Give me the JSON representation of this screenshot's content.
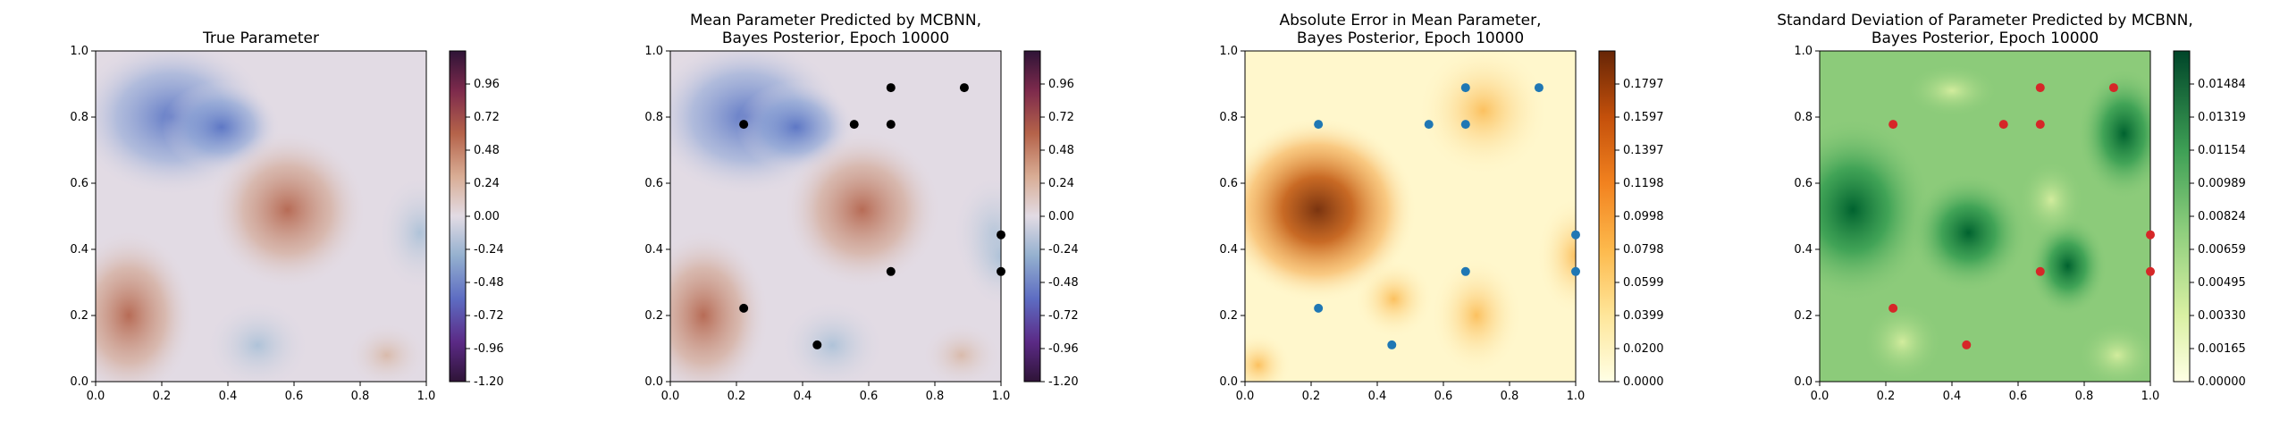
{
  "chart_data": [
    {
      "type": "heatmap",
      "title": [
        "True Parameter"
      ],
      "colormap": "twilight_shifted",
      "xlim": [
        0.0,
        1.0
      ],
      "ylim": [
        0.0,
        1.0
      ],
      "x_ticks": [
        "0.0",
        "0.2",
        "0.4",
        "0.6",
        "0.8",
        "1.0"
      ],
      "y_ticks": [
        "0.0",
        "0.2",
        "0.4",
        "0.6",
        "0.8",
        "1.0"
      ],
      "colorbar_range": [
        -1.2,
        1.2
      ],
      "colorbar_ticks": [
        "-1.20",
        "-0.96",
        "-0.72",
        "-0.48",
        "-0.24",
        "0.00",
        "0.24",
        "0.48",
        "0.72",
        "0.96"
      ],
      "points": [],
      "point_color": ""
    },
    {
      "type": "heatmap",
      "title": [
        "Mean Parameter Predicted by MCBNN,",
        "Bayes Posterior, Epoch 10000"
      ],
      "colormap": "twilight_shifted",
      "xlim": [
        0.0,
        1.0
      ],
      "ylim": [
        0.0,
        1.0
      ],
      "x_ticks": [
        "0.0",
        "0.2",
        "0.4",
        "0.6",
        "0.8",
        "1.0"
      ],
      "y_ticks": [
        "0.0",
        "0.2",
        "0.4",
        "0.6",
        "0.8",
        "1.0"
      ],
      "colorbar_range": [
        -1.2,
        1.2
      ],
      "colorbar_ticks": [
        "-1.20",
        "-0.96",
        "-0.72",
        "-0.48",
        "-0.24",
        "0.00",
        "0.24",
        "0.48",
        "0.72",
        "0.96"
      ],
      "points": [
        [
          0.222,
          0.778
        ],
        [
          0.667,
          0.889
        ],
        [
          0.889,
          0.889
        ],
        [
          0.556,
          0.778
        ],
        [
          0.667,
          0.778
        ],
        [
          1.0,
          0.444
        ],
        [
          0.667,
          0.333
        ],
        [
          1.0,
          0.333
        ],
        [
          0.222,
          0.222
        ],
        [
          0.444,
          0.111
        ]
      ],
      "point_color": "#000000"
    },
    {
      "type": "heatmap",
      "title": [
        "Absolute Error in Mean Parameter,",
        "Bayes Posterior, Epoch 10000"
      ],
      "colormap": "YlOrBr",
      "xlim": [
        0.0,
        1.0
      ],
      "ylim": [
        0.0,
        1.0
      ],
      "x_ticks": [
        "0.0",
        "0.2",
        "0.4",
        "0.6",
        "0.8",
        "1.0"
      ],
      "y_ticks": [
        "0.0",
        "0.2",
        "0.4",
        "0.6",
        "0.8",
        "1.0"
      ],
      "colorbar_range": [
        0.0,
        0.1996
      ],
      "colorbar_ticks": [
        "0.0000",
        "0.0200",
        "0.0399",
        "0.0599",
        "0.0798",
        "0.0998",
        "0.1198",
        "0.1397",
        "0.1597",
        "0.1797"
      ],
      "points": [
        [
          0.222,
          0.778
        ],
        [
          0.667,
          0.889
        ],
        [
          0.889,
          0.889
        ],
        [
          0.556,
          0.778
        ],
        [
          0.667,
          0.778
        ],
        [
          1.0,
          0.444
        ],
        [
          0.667,
          0.333
        ],
        [
          1.0,
          0.333
        ],
        [
          0.222,
          0.222
        ],
        [
          0.444,
          0.111
        ]
      ],
      "point_color": "#1f77b4"
    },
    {
      "type": "heatmap",
      "title": [
        "Standard Deviation of Parameter Predicted by MCBNN,",
        "Bayes Posterior, Epoch 10000"
      ],
      "colormap": "YlGn",
      "xlim": [
        0.0,
        1.0
      ],
      "ylim": [
        0.0,
        1.0
      ],
      "x_ticks": [
        "0.0",
        "0.2",
        "0.4",
        "0.6",
        "0.8",
        "1.0"
      ],
      "y_ticks": [
        "0.0",
        "0.2",
        "0.4",
        "0.6",
        "0.8",
        "1.0"
      ],
      "colorbar_range": [
        0.0,
        0.01649
      ],
      "colorbar_ticks": [
        "0.00000",
        "0.00165",
        "0.00330",
        "0.00495",
        "0.00659",
        "0.00824",
        "0.00989",
        "0.01154",
        "0.01319",
        "0.01484"
      ],
      "points": [
        [
          0.222,
          0.778
        ],
        [
          0.667,
          0.889
        ],
        [
          0.889,
          0.889
        ],
        [
          0.556,
          0.778
        ],
        [
          0.667,
          0.778
        ],
        [
          1.0,
          0.444
        ],
        [
          0.667,
          0.333
        ],
        [
          1.0,
          0.333
        ],
        [
          0.222,
          0.222
        ],
        [
          0.444,
          0.111
        ]
      ],
      "point_color": "#d62728"
    }
  ]
}
